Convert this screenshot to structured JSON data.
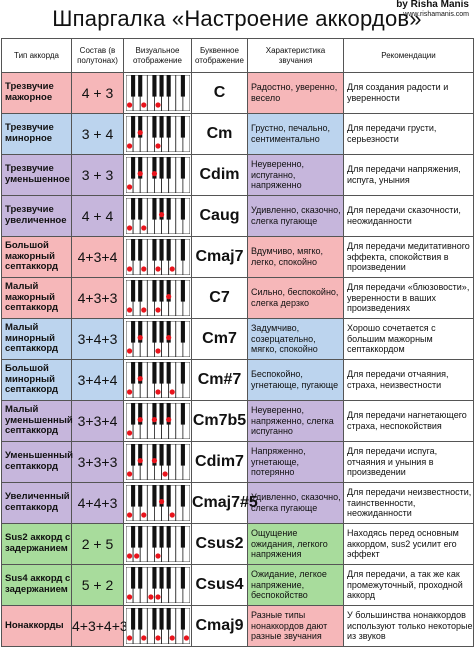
{
  "header": {
    "title": "Шпаргалка «Настроение аккордов»",
    "credit_author": "by Risha Manis",
    "credit_site": "www.rishamanis.com"
  },
  "columns": [
    "Тип аккорда",
    "Состав (в полутонах)",
    "Визуальное отображение",
    "Буквенное отображение",
    "Характеристика звучания",
    "Рекомендации"
  ],
  "colors": {
    "pink": "#f6b7b9",
    "blue": "#bcd4ee",
    "purple": "#c6b6dc",
    "green": "#a8dc9c"
  },
  "rows": [
    {
      "type": "Трезвучие мажорное",
      "formula": "4 + 3",
      "letter": "C",
      "mood": "Радостно, уверенно, весело",
      "rec": "Для создания радости и уверенности",
      "color": "pink",
      "notes": [
        0,
        4,
        7
      ]
    },
    {
      "type": "Трезвучие минорное",
      "formula": "3 + 4",
      "letter": "Cm",
      "mood": "Грустно, печально, сентиментально",
      "rec": "Для передачи грусти, серьезности",
      "color": "blue",
      "notes": [
        0,
        3,
        7
      ]
    },
    {
      "type": "Трезвучие уменьшенное",
      "formula": "3 + 3",
      "letter": "Cdim",
      "mood": "Неуверенно, испуганно, напряженно",
      "rec": "Для передачи напряжения, испуга, уныния",
      "color": "purple",
      "notes": [
        0,
        3,
        6
      ]
    },
    {
      "type": "Трезвучие увеличенное",
      "formula": "4 + 4",
      "letter": "Caug",
      "mood": "Удивленно, сказочно, слегка пугающе",
      "rec": "Для передачи сказочности, неожиданности",
      "color": "purple",
      "notes": [
        0,
        4,
        8
      ]
    },
    {
      "type": "Большой мажорный септаккорд",
      "formula": "4+3+4",
      "letter": "Cmaj7",
      "mood": "Вдумчиво, мягко, легко, спокойно",
      "rec": "Для передачи медитативного эффекта, спокойствия в произведении",
      "color": "pink",
      "notes": [
        0,
        4,
        7,
        11
      ]
    },
    {
      "type": "Малый мажорный септаккорд",
      "formula": "4+3+3",
      "letter": "C7",
      "mood": "Сильно, беспокойно, слегка дерзко",
      "rec": "Для передачи «блюзовости», уверенности в ваших произведениях",
      "color": "pink",
      "notes": [
        0,
        4,
        7,
        10
      ]
    },
    {
      "type": "Малый минорный септаккорд",
      "formula": "3+4+3",
      "letter": "Cm7",
      "mood": "Задумчиво, созерцательно, мягко, спокойно",
      "rec": "Хорошо сочетается с большим мажорным септаккордом",
      "color": "blue",
      "notes": [
        0,
        3,
        7,
        10
      ]
    },
    {
      "type": "Большой минорный септаккорд",
      "formula": "3+4+4",
      "letter": "Cm#7",
      "mood": "Беспокойно, угнетающе, пугающе",
      "rec": "Для передачи отчаяния, страха, неизвестности",
      "color": "blue",
      "notes": [
        0,
        3,
        7,
        11
      ]
    },
    {
      "type": "Малый уменьшенный септаккорд",
      "formula": "3+3+4",
      "letter": "Cm7b5",
      "mood": "Неуверенно, напряженно, слегка испуганно",
      "rec": "Для передачи нагнетающего страха, неспокойствия",
      "color": "purple",
      "notes": [
        0,
        3,
        6,
        10
      ]
    },
    {
      "type": "Уменьшенный септаккорд",
      "formula": "3+3+3",
      "letter": "Cdim7",
      "mood": "Напряженно, угнетающе, потерянно",
      "rec": "Для передачи испуга, отчаяния и уныния в произведении",
      "color": "purple",
      "notes": [
        0,
        3,
        6,
        9
      ]
    },
    {
      "type": "Увеличенный септаккорд",
      "formula": "4+4+3",
      "letter": "Cmaj7#5",
      "mood": "Удивленно, сказочно, слегка пугающе",
      "rec": "Для передачи неизвестности, таинственности, неожиданности",
      "color": "purple",
      "notes": [
        0,
        4,
        8,
        11
      ]
    },
    {
      "type": "Sus2 аккорд с задержанием",
      "formula": "2 + 5",
      "letter": "Csus2",
      "mood": "Ощущение ожидания, легкого напряжения",
      "rec": "Находясь перед основным аккордом, sus2 усилит его эффект",
      "color": "green",
      "notes": [
        0,
        2,
        7
      ]
    },
    {
      "type": "Sus4 аккорд с задержанием",
      "formula": "5 + 2",
      "letter": "Csus4",
      "mood": "Ожидание, легкое напряжение, беспокойство",
      "rec": "Для передачи, а так же как промежуточный, проходной аккорд",
      "color": "green",
      "notes": [
        0,
        5,
        7
      ]
    },
    {
      "type": "Нонаккорды",
      "formula": "4+3+4+3",
      "letter": "Cmaj9",
      "mood": "Разные типы нонаккордов дают разные звучания",
      "rec": "У большинства нонаккордов используют только некоторые из звуков",
      "color": "pink",
      "notes": [
        0,
        4,
        7,
        11,
        14
      ]
    }
  ]
}
